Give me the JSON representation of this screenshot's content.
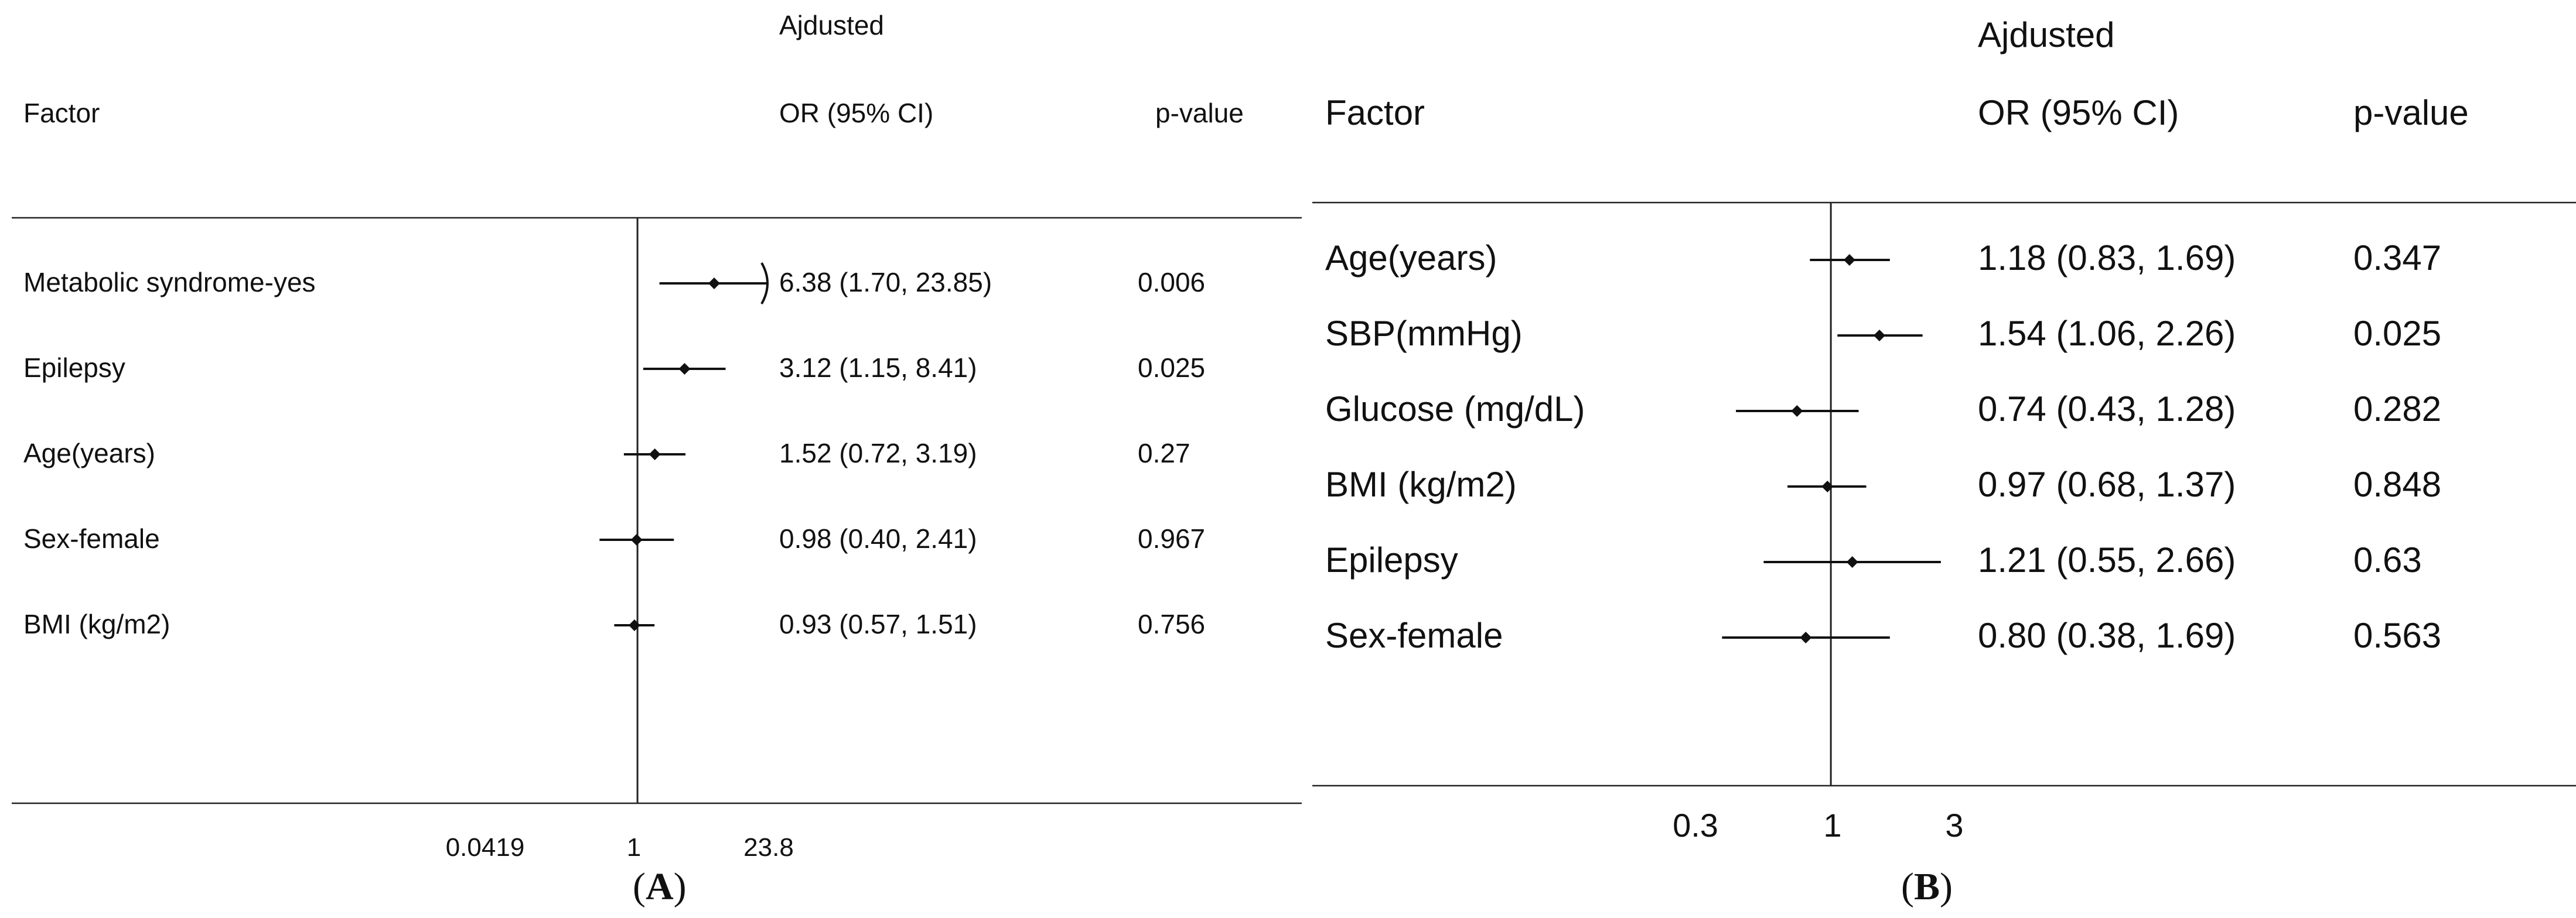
{
  "chart_data": [
    {
      "type": "forest",
      "panel_label": "A",
      "header": {
        "adjusted": "Ajdusted",
        "factor": "Factor",
        "or": "OR (95% CI)",
        "p": "p-value"
      },
      "rows": [
        {
          "factor": "Metabolic syndrome-yes",
          "or": 6.38,
          "lo": 1.7,
          "hi": 23.85,
          "or_text": "6.38 (1.70, 23.85)",
          "p": "0.006"
        },
        {
          "factor": "Epilepsy",
          "or": 3.12,
          "lo": 1.15,
          "hi": 8.41,
          "or_text": "3.12 (1.15, 8.41)",
          "p": "0.025"
        },
        {
          "factor": "Age(years)",
          "or": 1.52,
          "lo": 0.72,
          "hi": 3.19,
          "or_text": "1.52 (0.72, 3.19)",
          "p": "0.27"
        },
        {
          "factor": "Sex-female",
          "or": 0.98,
          "lo": 0.4,
          "hi": 2.41,
          "or_text": "0.98 (0.40, 2.41)",
          "p": "0.967"
        },
        {
          "factor": "BMI (kg/m2)",
          "or": 0.93,
          "lo": 0.57,
          "hi": 1.51,
          "or_text": "0.93 (0.57, 1.51)",
          "p": "0.756"
        }
      ],
      "x_ticks": [
        {
          "value": 0.0419,
          "label": "0.0419"
        },
        {
          "value": 1,
          "label": "1"
        },
        {
          "value": 23.8,
          "label": "23.8"
        }
      ],
      "x_scale": "log",
      "reference_line": 1,
      "clipped_upper": 23.8
    },
    {
      "type": "forest",
      "panel_label": "B",
      "header": {
        "adjusted": "Ajdusted",
        "factor": "Factor",
        "or": "OR (95% CI)",
        "p": "p-value"
      },
      "rows": [
        {
          "factor": "Age(years)",
          "or": 1.18,
          "lo": 0.83,
          "hi": 1.69,
          "or_text": "1.18 (0.83, 1.69)",
          "p": "0.347"
        },
        {
          "factor": "SBP(mmHg)",
          "or": 1.54,
          "lo": 1.06,
          "hi": 2.26,
          "or_text": "1.54 (1.06, 2.26)",
          "p": "0.025"
        },
        {
          "factor": "Glucose (mg/dL)",
          "or": 0.74,
          "lo": 0.43,
          "hi": 1.28,
          "or_text": "0.74 (0.43, 1.28)",
          "p": "0.282"
        },
        {
          "factor": "BMI (kg/m2)",
          "or": 0.97,
          "lo": 0.68,
          "hi": 1.37,
          "or_text": "0.97 (0.68, 1.37)",
          "p": "0.848"
        },
        {
          "factor": "Epilepsy",
          "or": 1.21,
          "lo": 0.55,
          "hi": 2.66,
          "or_text": "1.21 (0.55, 2.66)",
          "p": "0.63"
        },
        {
          "factor": "Sex-female",
          "or": 0.8,
          "lo": 0.38,
          "hi": 1.69,
          "or_text": "0.80 (0.38, 1.69)",
          "p": "0.563"
        }
      ],
      "x_ticks": [
        {
          "value": 0.3,
          "label": "0.3"
        },
        {
          "value": 1,
          "label": "1"
        },
        {
          "value": 3,
          "label": "3"
        }
      ],
      "x_scale": "log",
      "reference_line": 1
    }
  ]
}
